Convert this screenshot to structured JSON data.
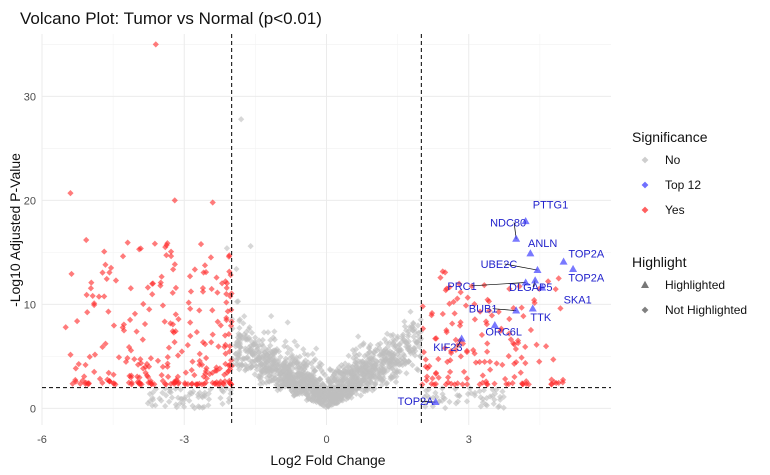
{
  "chart_data": {
    "type": "scatter",
    "title": "Volcano Plot: Tumor vs Normal (p<0.01)",
    "xlabel": "Log2 Fold Change",
    "ylabel": "-Log10 Adjusted P-Value",
    "xlim": [
      -6,
      6
    ],
    "ylim": [
      -1.6,
      36
    ],
    "x_ticks": [
      -6,
      -3,
      0,
      3
    ],
    "y_ticks": [
      0,
      10,
      20,
      30
    ],
    "x_tick_labels": [
      "-6",
      "-3",
      "0",
      "3"
    ],
    "y_tick_labels": [
      "0",
      "10",
      "20",
      "30"
    ],
    "grid": true,
    "thresholds": {
      "log2fc": [
        -2,
        2
      ],
      "neg_log10_p": 2
    },
    "colors": {
      "No": "#bebebe",
      "Top 12": "#4040ff",
      "Yes": "#ff2a2a"
    },
    "highlighted_genes": [
      {
        "label": "PTTG1",
        "x": 4.2,
        "y": 18.0,
        "label_x": 4.35,
        "label_y": 19.2
      },
      {
        "label": "NDC80",
        "x": 4.0,
        "y": 16.3,
        "label_x": 3.45,
        "label_y": 17.5
      },
      {
        "label": "ANLN",
        "x": 4.3,
        "y": 14.9,
        "label_x": 4.25,
        "label_y": 15.5
      },
      {
        "label": "TOP2A",
        "x": 5.0,
        "y": 14.1,
        "label_x": 5.1,
        "label_y": 14.5
      },
      {
        "label": "UBE2C",
        "x": 4.45,
        "y": 13.3,
        "label_x": 3.25,
        "label_y": 13.5
      },
      {
        "label": "TOP2A",
        "x": 5.2,
        "y": 13.4,
        "label_x": 5.1,
        "label_y": 12.2
      },
      {
        "label": "DLGAP5",
        "x": 4.4,
        "y": 12.3,
        "label_x": 3.85,
        "label_y": 11.3
      },
      {
        "label": "PRC1",
        "x": 4.2,
        "y": 12.1,
        "label_x": 2.55,
        "label_y": 11.4
      },
      {
        "label": "SKA1",
        "x": 4.55,
        "y": 11.6,
        "label_x": 5.0,
        "label_y": 10.1
      },
      {
        "label": "BUB1",
        "x": 4.0,
        "y": 9.4,
        "label_x": 3.0,
        "label_y": 9.2
      },
      {
        "label": "TTK",
        "x": 4.35,
        "y": 9.6,
        "label_x": 4.3,
        "label_y": 8.4
      },
      {
        "label": "ORC6L",
        "x": 3.55,
        "y": 8.0,
        "label_x": 3.35,
        "label_y": 7.0
      },
      {
        "label": "KIF23",
        "x": 2.85,
        "y": 6.7,
        "label_x": 2.25,
        "label_y": 5.5
      },
      {
        "label": "TOP2A",
        "x": 2.3,
        "y": 0.6,
        "label_x": 1.5,
        "label_y": 0.3
      }
    ],
    "notable_points": [
      {
        "x": -3.6,
        "y": 35.0,
        "group": "Yes"
      },
      {
        "x": -5.4,
        "y": 20.7,
        "group": "Yes"
      },
      {
        "x": -3.2,
        "y": 20.0,
        "group": "Yes"
      },
      {
        "x": -2.4,
        "y": 19.8,
        "group": "Yes"
      },
      {
        "x": -1.8,
        "y": 27.8,
        "group": "No"
      },
      {
        "x": -5.5,
        "y": 7.8,
        "group": "Yes"
      },
      {
        "x": -4.9,
        "y": 10.1,
        "group": "Yes"
      },
      {
        "x": -4.6,
        "y": 9.3,
        "group": "Yes"
      },
      {
        "x": -3.95,
        "y": 15.3,
        "group": "Yes"
      },
      {
        "x": -3.4,
        "y": 15.5,
        "group": "Yes"
      },
      {
        "x": -2.1,
        "y": 15.4,
        "group": "No"
      },
      {
        "x": -1.6,
        "y": 15.6,
        "group": "No"
      },
      {
        "x": -1.9,
        "y": 13.4,
        "group": "No"
      }
    ],
    "legend": [
      {
        "title": "Significance",
        "entries": [
          {
            "label": "No",
            "shape": "diamond",
            "color": "#bebebe"
          },
          {
            "label": "Top 12",
            "shape": "diamond",
            "color": "#4040ff"
          },
          {
            "label": "Yes",
            "shape": "diamond",
            "color": "#ff2a2a"
          }
        ]
      },
      {
        "title": "Highlight",
        "entries": [
          {
            "label": "Highlighted",
            "shape": "triangle",
            "color": "#555555"
          },
          {
            "label": "Not Highlighted",
            "shape": "diamond",
            "color": "#555555"
          }
        ]
      }
    ],
    "legend_position": "right"
  }
}
